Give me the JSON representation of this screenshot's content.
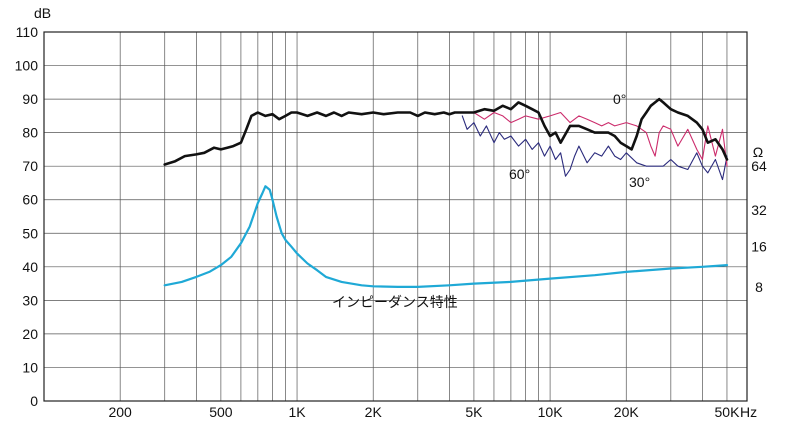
{
  "chart_data": {
    "type": "line",
    "y_unit": "dB",
    "y_ticks": [
      "0",
      "10",
      "20",
      "30",
      "40",
      "50",
      "60",
      "70",
      "80",
      "90",
      "100",
      "110"
    ],
    "ylim": [
      0,
      110
    ],
    "x_unit": "Hz",
    "x_scale": "log",
    "xlim": [
      100,
      60000
    ],
    "x_tick_labels": [
      {
        "label": "200",
        "value": 200
      },
      {
        "label": "500",
        "value": 500
      },
      {
        "label": "1K",
        "value": 1000
      },
      {
        "label": "2K",
        "value": 2000
      },
      {
        "label": "5K",
        "value": 5000
      },
      {
        "label": "10K",
        "value": 10000
      },
      {
        "label": "20K",
        "value": 20000
      },
      {
        "label": "50K",
        "value": 50000
      }
    ],
    "right_axis": {
      "unit": "Ω",
      "ticks": [
        {
          "label": "64",
          "db": 70
        },
        {
          "label": "32",
          "db": 57
        },
        {
          "label": "16",
          "db": 46
        },
        {
          "label": "8",
          "db": 34
        }
      ]
    },
    "series": [
      {
        "name": "0°",
        "color": "#111111",
        "x": [
          300,
          330,
          360,
          400,
          430,
          470,
          500,
          530,
          560,
          600,
          630,
          660,
          700,
          750,
          800,
          850,
          900,
          950,
          1000,
          1100,
          1200,
          1300,
          1400,
          1500,
          1600,
          1800,
          2000,
          2200,
          2500,
          2800,
          3000,
          3200,
          3500,
          3800,
          4000,
          4200,
          4500,
          5000,
          5500,
          6000,
          6500,
          7000,
          7500,
          8000,
          8500,
          9000,
          9500,
          10000,
          10500,
          11000,
          12000,
          13000,
          14000,
          15000,
          16000,
          17000,
          18000,
          19000,
          20000,
          21000,
          22000,
          23000,
          24000,
          25000,
          26000,
          27000,
          28000,
          30000,
          32000,
          35000,
          38000,
          40000,
          42000,
          45000,
          48000,
          50000
        ],
        "values": [
          70.5,
          71.5,
          73,
          73.5,
          74,
          75.5,
          75,
          75.5,
          76,
          77,
          81,
          85,
          86,
          85,
          85.5,
          84,
          85,
          86,
          86,
          85,
          86,
          85,
          86,
          85,
          86,
          85.5,
          86,
          85.5,
          86,
          86,
          85,
          86,
          85.5,
          86,
          85.5,
          86,
          86,
          86,
          87,
          86.5,
          88,
          87,
          89,
          88,
          87,
          86,
          82,
          79,
          80,
          77,
          82,
          82,
          81,
          80,
          80,
          80,
          79,
          77,
          76,
          75,
          79,
          84,
          86,
          88,
          89,
          90,
          89,
          87,
          86,
          85,
          83,
          81,
          77,
          78,
          75,
          72
        ]
      },
      {
        "name": "30°",
        "color": "#cc2c6c",
        "x": [
          4500,
          5000,
          5500,
          6000,
          6500,
          7000,
          7500,
          8000,
          9000,
          10000,
          11000,
          12000,
          13000,
          14000,
          15000,
          16000,
          17000,
          18000,
          20000,
          22000,
          24000,
          25000,
          26000,
          27000,
          28000,
          30000,
          32000,
          35000,
          38000,
          40000,
          42000,
          45000,
          48000,
          50000
        ],
        "values": [
          86,
          86,
          84,
          86,
          85,
          83,
          84,
          85,
          84,
          85,
          86,
          83,
          85,
          84,
          83,
          82,
          83,
          82,
          83,
          82,
          80,
          76,
          73,
          80,
          82,
          81,
          76,
          81,
          75,
          72,
          82,
          73,
          81,
          70
        ]
      },
      {
        "name": "60°",
        "color": "#2a2a7c",
        "x": [
          4500,
          4700,
          5000,
          5300,
          5600,
          6000,
          6300,
          6600,
          7000,
          7500,
          8000,
          8500,
          9000,
          9500,
          10000,
          10500,
          11000,
          11500,
          12000,
          12500,
          13000,
          14000,
          15000,
          16000,
          17000,
          18000,
          19000,
          20000,
          22000,
          24000,
          26000,
          28000,
          30000,
          32000,
          35000,
          38000,
          40000,
          42000,
          45000,
          48000,
          50000
        ],
        "values": [
          85,
          81,
          83,
          79,
          82,
          77,
          80,
          78,
          79,
          76,
          78,
          75,
          77,
          73,
          76,
          72,
          74,
          67,
          69,
          73,
          76,
          71,
          74,
          73,
          76,
          73,
          72,
          74,
          71,
          70,
          70,
          70,
          72,
          70,
          69,
          74,
          70,
          68,
          72,
          66,
          73
        ]
      },
      {
        "name": "インピーダンス特性",
        "color": "#1fa9d6",
        "x": [
          300,
          350,
          400,
          450,
          500,
          550,
          600,
          650,
          700,
          730,
          750,
          780,
          800,
          830,
          870,
          900,
          950,
          1000,
          1100,
          1200,
          1300,
          1500,
          1800,
          2000,
          2500,
          3000,
          4000,
          5000,
          7000,
          10000,
          15000,
          20000,
          30000,
          40000,
          50000
        ],
        "values": [
          34.5,
          35.5,
          37,
          38.5,
          40.5,
          43,
          47,
          52,
          59,
          62,
          64,
          63,
          60,
          55,
          50,
          48,
          46,
          44,
          41,
          39,
          37,
          35.5,
          34.5,
          34.2,
          34,
          34,
          34.5,
          35,
          35.5,
          36.5,
          37.5,
          38.5,
          39.5,
          40,
          40.5
        ]
      }
    ],
    "annotations": {
      "impedance_label": "インピーダンス特性",
      "label_0": "0°",
      "label_30": "30°",
      "label_60": "60°"
    }
  }
}
